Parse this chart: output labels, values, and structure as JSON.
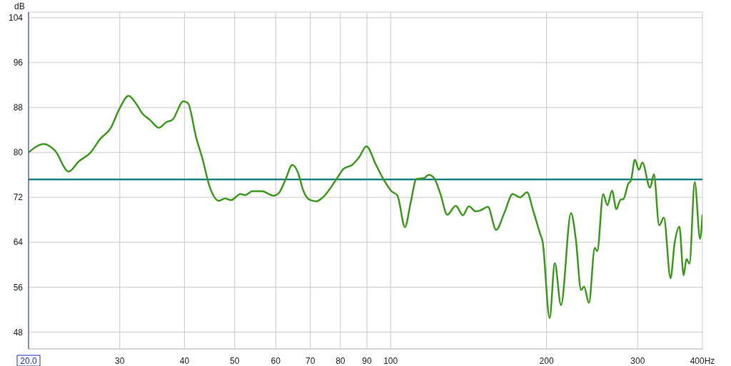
{
  "chart_data": {
    "type": "line",
    "ylabel": "dB",
    "log": "x",
    "grid": true,
    "xlim": [
      20,
      400
    ],
    "xticks": [
      {
        "value": 20,
        "label": "20.0"
      },
      30,
      40,
      50,
      60,
      70,
      80,
      90,
      100,
      200,
      300,
      {
        "value": 400,
        "label": "400Hz"
      }
    ],
    "ylim": [
      45,
      105
    ],
    "yticks": [
      48,
      56,
      64,
      72,
      80,
      88,
      96,
      104
    ],
    "ref_lines": [
      {
        "axis": "y",
        "value": 75.2,
        "color": "#1b7f86"
      }
    ],
    "series": [
      {
        "color": "#3c9a1c",
        "x": [
          20.0,
          21.4,
          22.5,
          23.9,
          25.0,
          26.3,
          27.5,
          28.8,
          30.0,
          31.2,
          32.2,
          33.2,
          34.3,
          35.7,
          36.9,
          37.9,
          39.8,
          40.6,
          42.2,
          43.3,
          44.7,
          46.6,
          47.9,
          49.2,
          51.3,
          52.4,
          54.1,
          56.4,
          59.4,
          61.0,
          62.7,
          64.6,
          66.2,
          67.9,
          69.7,
          71.9,
          74.2,
          78.3,
          81.2,
          84.3,
          87.0,
          89.8,
          93.7,
          97.2,
          100.4,
          103.1,
          106.6,
          109.3,
          112.2,
          115.8,
          118.5,
          121.4,
          124.7,
          128.7,
          133.6,
          137.9,
          141.6,
          146.1,
          149.2,
          154.1,
          159.9,
          165.9,
          172.1,
          177.7,
          183.4,
          188.4,
          194.4,
          196.5,
          202.8,
          207.5,
          213.3,
          223.0,
          227.8,
          233.2,
          236.3,
          241.5,
          247.9,
          250.6,
          257.3,
          262.1,
          267.6,
          272.8,
          278.0,
          281.5,
          287.6,
          291.3,
          296.2,
          301.6,
          306.3,
          316.9,
          322.4,
          330.0,
          337.0,
          347.1,
          353.4,
          361.0,
          367.9,
          372.6,
          377.6,
          386.5,
          395.8,
          400
        ],
        "values": [
          80.0,
          81.5,
          80.3,
          76.6,
          78.4,
          79.9,
          82.4,
          84.3,
          87.9,
          90.1,
          88.8,
          86.9,
          85.8,
          84.4,
          85.4,
          85.8,
          89.1,
          88.8,
          82.4,
          79.0,
          74.0,
          71.4,
          71.8,
          71.5,
          72.6,
          72.4,
          73.1,
          73.1,
          72.3,
          72.9,
          75.2,
          77.8,
          76.5,
          73.1,
          71.6,
          71.3,
          72.1,
          75.0,
          77.1,
          77.8,
          79.2,
          81.1,
          77.8,
          75.0,
          73.1,
          72.3,
          66.7,
          71.0,
          75.3,
          75.4,
          76.0,
          75.4,
          72.7,
          68.9,
          70.5,
          68.8,
          70.4,
          69.5,
          69.7,
          70.3,
          66.2,
          69.3,
          72.6,
          72.0,
          72.9,
          69.7,
          65.5,
          64.2,
          50.5,
          60.3,
          52.8,
          69.2,
          64.6,
          55.5,
          56.1,
          53.2,
          63.0,
          62.4,
          72.6,
          70.6,
          73.2,
          69.9,
          71.6,
          71.7,
          74.4,
          75.1,
          78.7,
          76.9,
          78.2,
          73.7,
          76.1,
          67.0,
          68.4,
          57.6,
          63.8,
          66.8,
          58.1,
          61.0,
          60.2,
          74.7,
          64.6,
          68.9
        ]
      }
    ]
  }
}
